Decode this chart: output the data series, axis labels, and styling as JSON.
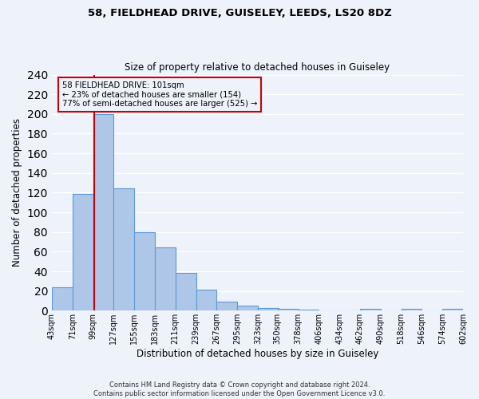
{
  "title1": "58, FIELDHEAD DRIVE, GUISELEY, LEEDS, LS20 8DZ",
  "title2": "Size of property relative to detached houses in Guiseley",
  "xlabel": "Distribution of detached houses by size in Guiseley",
  "ylabel": "Number of detached properties",
  "footnote1": "Contains HM Land Registry data © Crown copyright and database right 2024.",
  "footnote2": "Contains public sector information licensed under the Open Government Licence v3.0.",
  "annotation_line1": "58 FIELDHEAD DRIVE: 101sqm",
  "annotation_line2": "← 23% of detached houses are smaller (154)",
  "annotation_line3": "77% of semi-detached houses are larger (525) →",
  "bin_edges": [
    43,
    71,
    99,
    127,
    155,
    183,
    211,
    239,
    267,
    295,
    323,
    350,
    378,
    406,
    434,
    462,
    490,
    518,
    546,
    574,
    602
  ],
  "bar_heights": [
    24,
    119,
    200,
    124,
    80,
    64,
    38,
    21,
    9,
    5,
    3,
    2,
    1,
    0,
    0,
    2,
    0,
    2,
    0,
    2
  ],
  "property_size": 101,
  "bar_color": "#aec6e8",
  "bar_edge_color": "#5b9bd5",
  "red_line_color": "#cc0000",
  "annotation_box_edge": "#cc0000",
  "background_color": "#edf2fb",
  "grid_color": "#ffffff",
  "ylim": [
    0,
    240
  ],
  "yticks": [
    0,
    20,
    40,
    60,
    80,
    100,
    120,
    140,
    160,
    180,
    200,
    220,
    240
  ]
}
